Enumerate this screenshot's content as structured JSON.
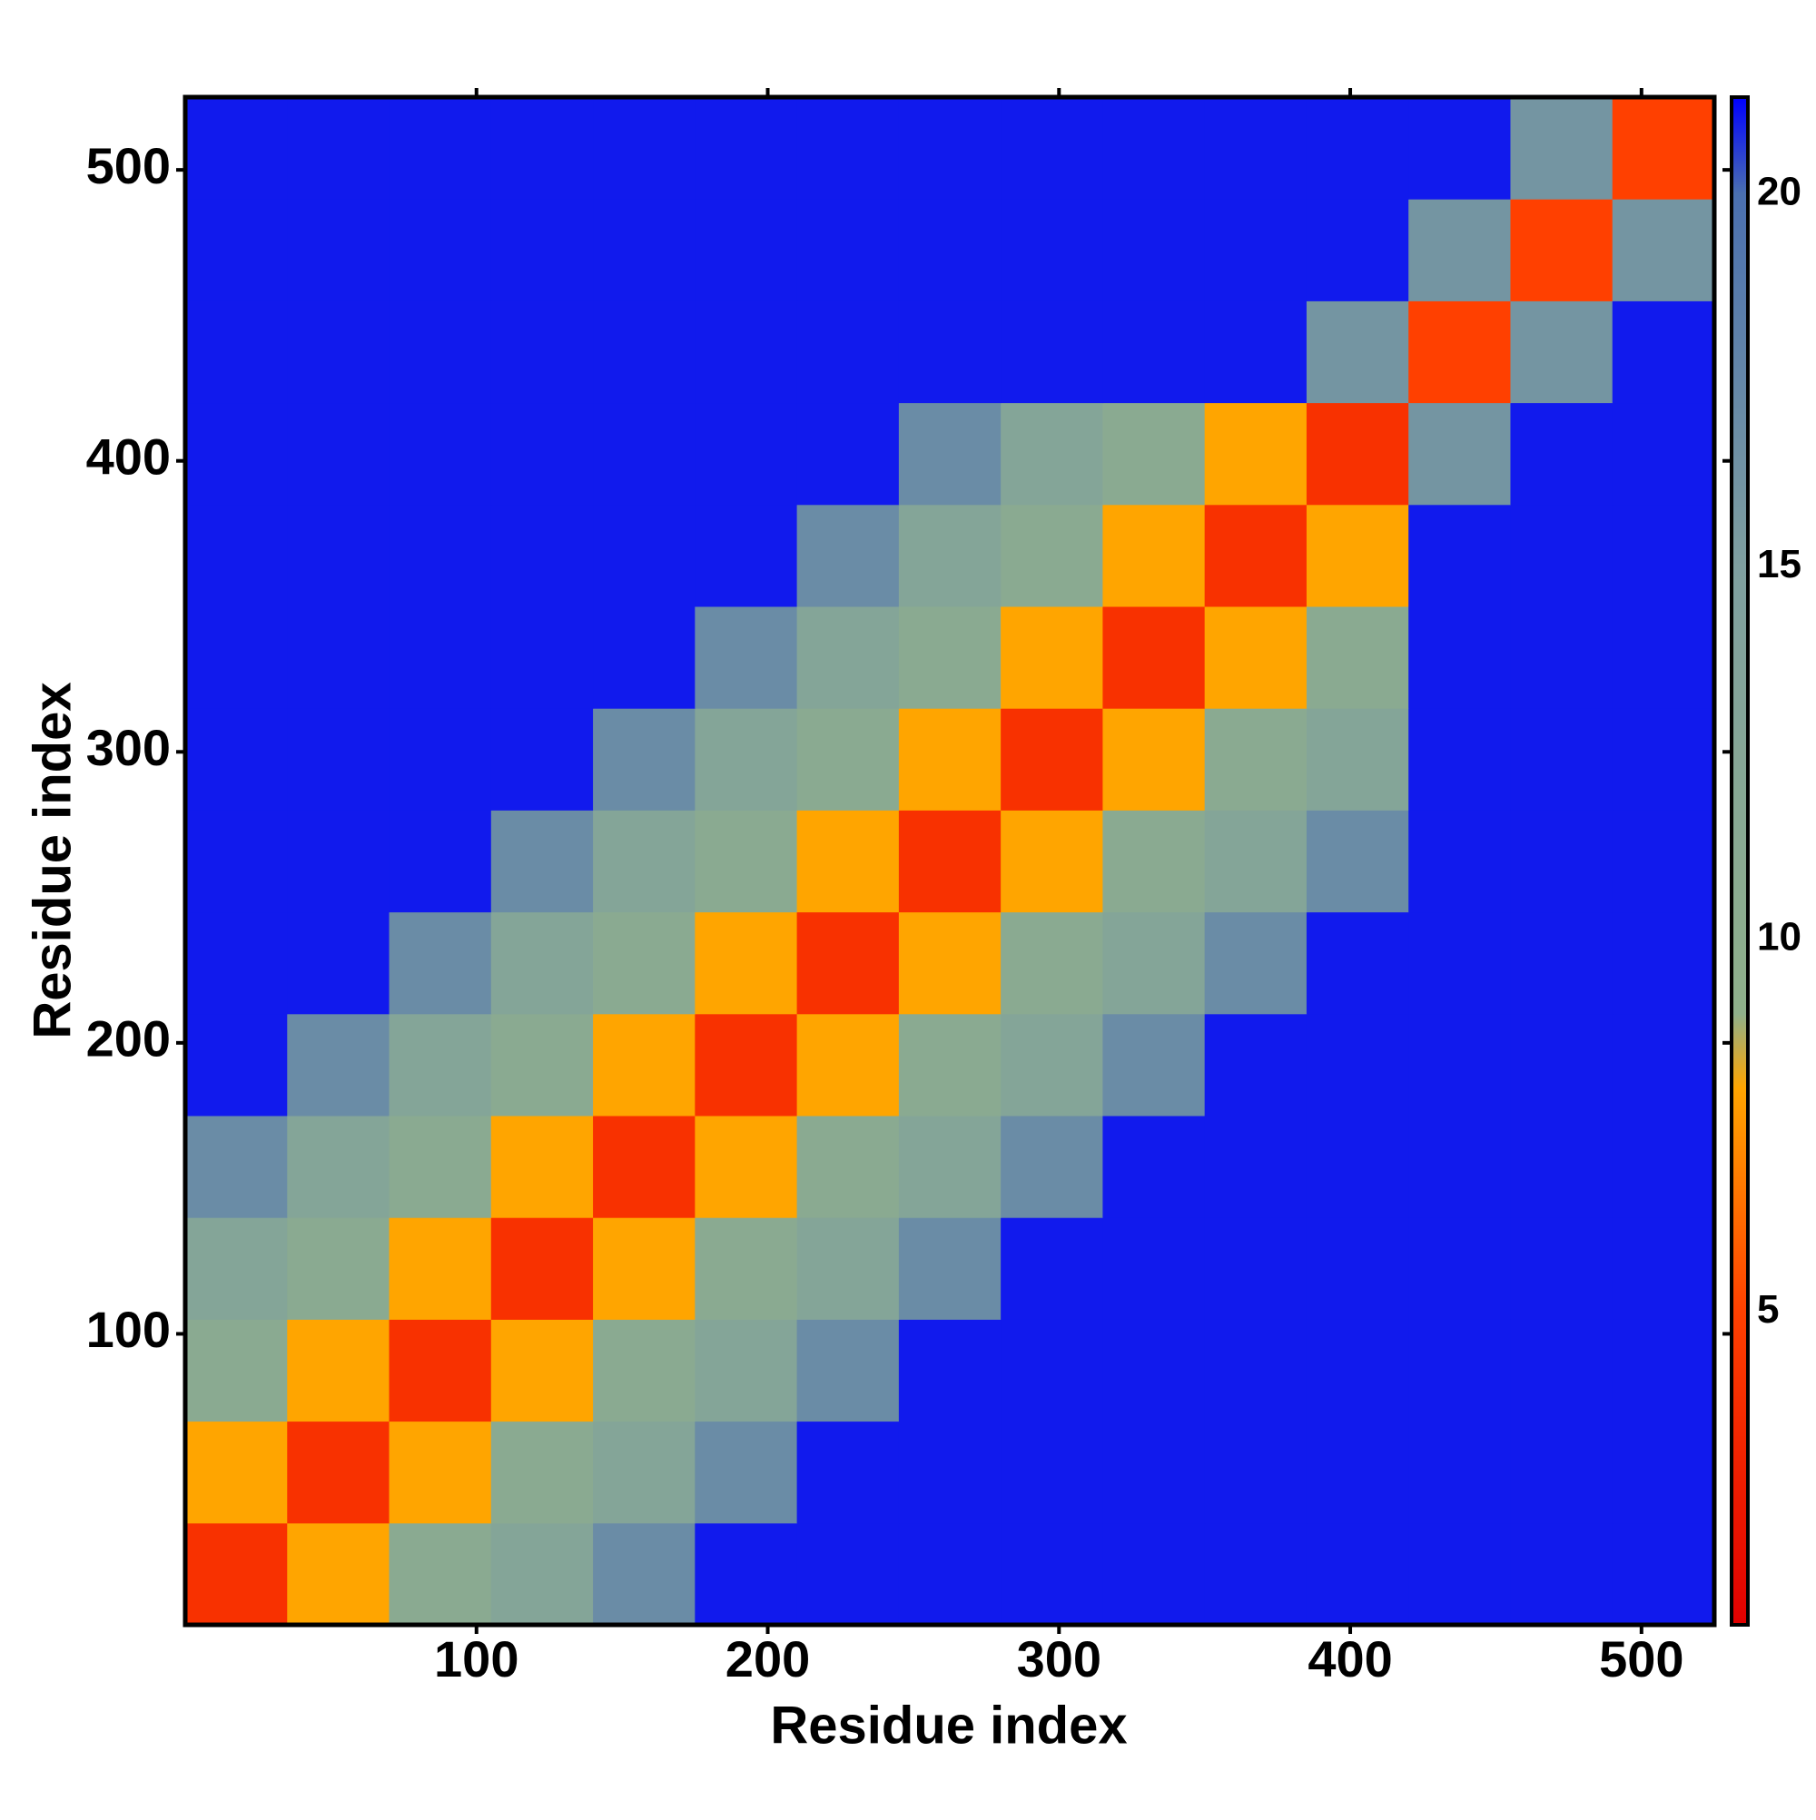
{
  "chart_data": {
    "type": "heatmap",
    "x_label": "Residue index",
    "y_label": "Residue index",
    "xbins": [
      0,
      35,
      70,
      105,
      140,
      175,
      210,
      245,
      280,
      315,
      350,
      385,
      420,
      455,
      490,
      525
    ],
    "ybins": [
      0,
      35,
      70,
      105,
      140,
      175,
      210,
      245,
      280,
      315,
      350,
      385,
      420,
      455,
      490,
      525
    ],
    "xlim": [
      0,
      525
    ],
    "ylim": [
      0,
      525
    ],
    "xticks": [
      100,
      200,
      300,
      400,
      500
    ],
    "yticks": [
      100,
      200,
      300,
      400,
      500
    ],
    "z": [
      [
        4,
        8,
        11,
        13,
        17,
        21,
        21,
        21,
        21,
        21,
        21,
        21,
        21,
        21,
        21
      ],
      [
        8,
        4,
        8,
        11,
        13,
        17,
        21,
        21,
        21,
        21,
        21,
        21,
        21,
        21,
        21
      ],
      [
        11,
        8,
        4,
        8,
        11,
        13,
        17,
        21,
        21,
        21,
        21,
        21,
        21,
        21,
        21
      ],
      [
        13,
        11,
        8,
        4,
        8,
        11,
        13,
        17,
        21,
        21,
        21,
        21,
        21,
        21,
        21
      ],
      [
        17,
        13,
        11,
        8,
        4,
        8,
        11,
        13,
        17,
        21,
        21,
        21,
        21,
        21,
        21
      ],
      [
        21,
        17,
        13,
        11,
        8,
        4,
        8,
        11,
        13,
        17,
        21,
        21,
        21,
        21,
        21
      ],
      [
        21,
        21,
        17,
        13,
        11,
        8,
        4,
        8,
        11,
        13,
        17,
        21,
        21,
        21,
        21
      ],
      [
        21,
        21,
        21,
        17,
        13,
        11,
        8,
        4,
        8,
        11,
        13,
        17,
        21,
        21,
        21
      ],
      [
        21,
        21,
        21,
        21,
        17,
        13,
        11,
        8,
        4,
        8,
        11,
        13,
        21,
        21,
        21
      ],
      [
        21,
        21,
        21,
        21,
        21,
        17,
        13,
        11,
        8,
        4,
        8,
        11,
        21,
        21,
        21
      ],
      [
        21,
        21,
        21,
        21,
        21,
        21,
        17,
        13,
        11,
        8,
        4,
        8,
        21,
        21,
        21
      ],
      [
        21,
        21,
        21,
        21,
        21,
        21,
        21,
        17,
        13,
        11,
        8,
        4,
        16,
        21,
        21
      ],
      [
        21,
        21,
        21,
        21,
        21,
        21,
        21,
        21,
        21,
        21,
        21,
        16,
        5,
        16,
        21
      ],
      [
        21,
        21,
        21,
        21,
        21,
        21,
        21,
        21,
        21,
        21,
        21,
        21,
        16,
        5,
        16
      ],
      [
        21,
        21,
        21,
        21,
        21,
        21,
        21,
        21,
        21,
        21,
        21,
        21,
        21,
        16,
        5
      ]
    ],
    "zlim": [
      0.8,
      21.3
    ],
    "zticks": [
      5,
      10,
      15,
      20
    ],
    "colorscale": [
      [
        0.8,
        "#e00000"
      ],
      [
        5,
        "#ff4000"
      ],
      [
        8,
        "#ffa500"
      ],
      [
        9,
        "#8fb08a"
      ],
      [
        15,
        "#7f9f9f"
      ],
      [
        20,
        "#4a6fb0"
      ],
      [
        21.3,
        "#0000ff"
      ]
    ]
  }
}
